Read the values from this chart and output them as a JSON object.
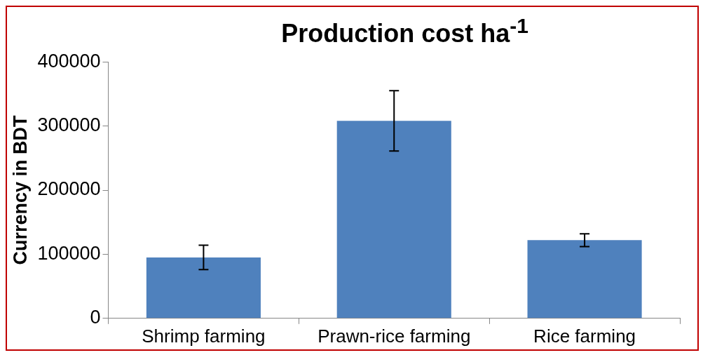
{
  "chart_data": {
    "type": "bar",
    "title": "Production cost ha$^{-1}$",
    "ylabel": "Currency in BDT",
    "categories": [
      "Shrimp farming",
      "Prawn-rice farming",
      "Rice farming"
    ],
    "values": [
      95000,
      308000,
      122000
    ],
    "errors": [
      19000,
      47000,
      10000
    ],
    "color": "#4f81bd",
    "ylim": [
      0,
      400000
    ],
    "yticks": [
      0,
      100000,
      200000,
      300000,
      400000
    ],
    "grid": false,
    "legend": false
  }
}
